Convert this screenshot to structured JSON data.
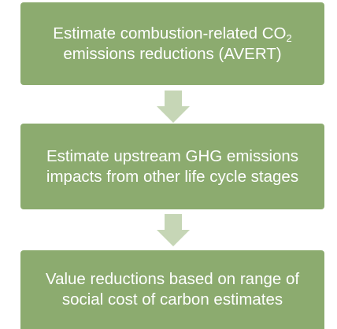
{
  "nodes": [
    {
      "lines": [
        {
          "text": "Estimate combustion-related CO",
          "subscript": "2"
        },
        {
          "text": "emissions reductions (AVERT)"
        }
      ]
    },
    {
      "lines": [
        {
          "text": "Estimate upstream GHG emissions"
        },
        {
          "text": "impacts from other life cycle stages"
        }
      ]
    },
    {
      "lines": [
        {
          "text": "Value reductions based on range of"
        },
        {
          "text": "social cost of carbon estimates"
        }
      ]
    }
  ]
}
